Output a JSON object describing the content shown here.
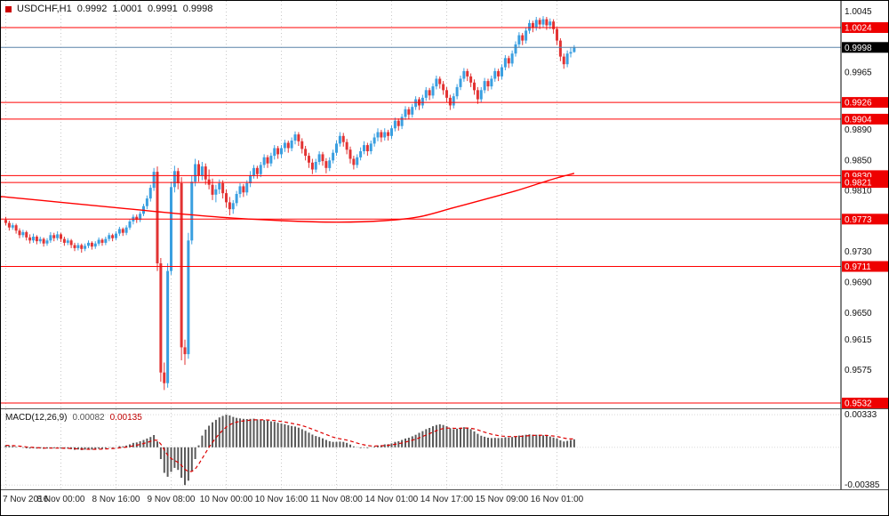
{
  "header": {
    "symbol_period": "USDCHF,H1",
    "open": "0.9992",
    "high": "1.0001",
    "low": "0.9991",
    "close": "0.9998"
  },
  "macd_header": {
    "label": "MACD(12,26,9)",
    "main_value": "0.00082",
    "signal_value": "0.00135"
  },
  "colors": {
    "bull": "#3a9fe0",
    "bear": "#e23333",
    "line_red": "#ff0000",
    "price_line": "#5b84a8",
    "badge_red": "#ee0000",
    "badge_black": "#000000",
    "grid": "#c8c8c8",
    "ma_line": "#ff0000",
    "macd_bar": "#5a5a5a",
    "macd_signal": "#dd0000",
    "axis_text": "#111111"
  },
  "chart_data": {
    "type": "candlestick",
    "title": "USDCHF,H1",
    "price_axis": {
      "min": 0.9532,
      "max": 1.0045,
      "plain_labels": [
        "1.0045",
        "0.9965",
        "0.9890",
        "0.9850",
        "0.9810",
        "0.9730",
        "0.9690",
        "0.9650",
        "0.9615",
        "0.9575"
      ],
      "level_lines": [
        {
          "value": 1.0024,
          "label": "1.0024"
        },
        {
          "value": 0.9926,
          "label": "0.9926"
        },
        {
          "value": 0.9904,
          "label": "0.9904"
        },
        {
          "value": 0.983,
          "label": "0.9830"
        },
        {
          "value": 0.9821,
          "label": "0.9821"
        },
        {
          "value": 0.9773,
          "label": "0.9773"
        },
        {
          "value": 0.9711,
          "label": "0.9711"
        },
        {
          "value": 0.9532,
          "label": "0.9532"
        }
      ],
      "current_price": {
        "value": 0.9998,
        "label": "0.9998"
      }
    },
    "time_axis": {
      "step": 16,
      "labels": [
        "7 Nov 2016",
        "8 Nov 00:00",
        "8 Nov 16:00",
        "9 Nov 08:00",
        "10 Nov 00:00",
        "10 Nov 16:00",
        "11 Nov 08:00",
        "14 Nov 01:00",
        "14 Nov 17:00",
        "15 Nov 09:00",
        "16 Nov 01:00"
      ]
    },
    "candles": [
      [
        0.9772,
        0.9776,
        0.9765,
        0.9768
      ],
      [
        0.9768,
        0.9771,
        0.9758,
        0.9762
      ],
      [
        0.9762,
        0.9768,
        0.9759,
        0.9765
      ],
      [
        0.9765,
        0.9767,
        0.9754,
        0.9758
      ],
      [
        0.9758,
        0.9761,
        0.9748,
        0.9752
      ],
      [
        0.9752,
        0.9759,
        0.9749,
        0.9756
      ],
      [
        0.9756,
        0.9758,
        0.9745,
        0.9749
      ],
      [
        0.9749,
        0.9753,
        0.9741,
        0.9745
      ],
      [
        0.9745,
        0.9754,
        0.9742,
        0.975
      ],
      [
        0.975,
        0.9752,
        0.974,
        0.9744
      ],
      [
        0.9744,
        0.975,
        0.9741,
        0.9747
      ],
      [
        0.9747,
        0.9749,
        0.9737,
        0.9741
      ],
      [
        0.9741,
        0.9748,
        0.9738,
        0.9745
      ],
      [
        0.9745,
        0.9756,
        0.9742,
        0.9752
      ],
      [
        0.9752,
        0.9755,
        0.9744,
        0.9748
      ],
      [
        0.9748,
        0.9757,
        0.9745,
        0.9753
      ],
      [
        0.9753,
        0.9755,
        0.9743,
        0.9747
      ],
      [
        0.9747,
        0.975,
        0.9738,
        0.9742
      ],
      [
        0.9742,
        0.9748,
        0.9739,
        0.9745
      ],
      [
        0.9745,
        0.9747,
        0.9735,
        0.9739
      ],
      [
        0.9739,
        0.9742,
        0.9731,
        0.9735
      ],
      [
        0.9735,
        0.9742,
        0.9732,
        0.9739
      ],
      [
        0.9739,
        0.9741,
        0.9729,
        0.9734
      ],
      [
        0.9734,
        0.9741,
        0.9731,
        0.9738
      ],
      [
        0.9738,
        0.9745,
        0.9735,
        0.9742
      ],
      [
        0.9742,
        0.9744,
        0.9733,
        0.9737
      ],
      [
        0.9737,
        0.9744,
        0.9734,
        0.9741
      ],
      [
        0.9741,
        0.9749,
        0.9738,
        0.9746
      ],
      [
        0.9746,
        0.9748,
        0.9738,
        0.9742
      ],
      [
        0.9742,
        0.975,
        0.9739,
        0.9747
      ],
      [
        0.9747,
        0.9755,
        0.9744,
        0.9752
      ],
      [
        0.9752,
        0.9754,
        0.9744,
        0.9748
      ],
      [
        0.9748,
        0.9757,
        0.9745,
        0.9754
      ],
      [
        0.9754,
        0.9763,
        0.9751,
        0.976
      ],
      [
        0.976,
        0.9762,
        0.9751,
        0.9755
      ],
      [
        0.9755,
        0.9765,
        0.9752,
        0.9762
      ],
      [
        0.9762,
        0.9773,
        0.9759,
        0.977
      ],
      [
        0.977,
        0.9779,
        0.9766,
        0.9776
      ],
      [
        0.9776,
        0.9779,
        0.9768,
        0.9772
      ],
      [
        0.9772,
        0.9783,
        0.9769,
        0.978
      ],
      [
        0.978,
        0.9793,
        0.9777,
        0.979
      ],
      [
        0.979,
        0.9804,
        0.9786,
        0.98
      ],
      [
        0.98,
        0.9818,
        0.9796,
        0.9814
      ],
      [
        0.9814,
        0.984,
        0.981,
        0.9835
      ],
      [
        0.9835,
        0.9842,
        0.9705,
        0.9715
      ],
      [
        0.9715,
        0.9722,
        0.956,
        0.9572
      ],
      [
        0.9572,
        0.9585,
        0.9549,
        0.9558
      ],
      [
        0.9558,
        0.9715,
        0.9552,
        0.9705
      ],
      [
        0.9705,
        0.9822,
        0.97,
        0.9815
      ],
      [
        0.9815,
        0.9843,
        0.9808,
        0.9836
      ],
      [
        0.9836,
        0.984,
        0.9812,
        0.982
      ],
      [
        0.982,
        0.9828,
        0.9588,
        0.9605
      ],
      [
        0.9605,
        0.9615,
        0.9582,
        0.9596
      ],
      [
        0.9596,
        0.9755,
        0.959,
        0.9745
      ],
      [
        0.9745,
        0.983,
        0.974,
        0.9822
      ],
      [
        0.9822,
        0.9852,
        0.9816,
        0.9845
      ],
      [
        0.9845,
        0.985,
        0.9822,
        0.983
      ],
      [
        0.983,
        0.9848,
        0.9824,
        0.9842
      ],
      [
        0.9842,
        0.9846,
        0.9818,
        0.9825
      ],
      [
        0.9825,
        0.9838,
        0.9812,
        0.9818
      ],
      [
        0.9818,
        0.9826,
        0.9798,
        0.9805
      ],
      [
        0.9805,
        0.9818,
        0.9795,
        0.9812
      ],
      [
        0.9812,
        0.9825,
        0.9806,
        0.982
      ],
      [
        0.982,
        0.9824,
        0.98,
        0.9807
      ],
      [
        0.9807,
        0.9812,
        0.9788,
        0.9795
      ],
      [
        0.9795,
        0.9802,
        0.9778,
        0.9786
      ],
      [
        0.9786,
        0.9798,
        0.978,
        0.9794
      ],
      [
        0.9794,
        0.981,
        0.979,
        0.9806
      ],
      [
        0.9806,
        0.982,
        0.9801,
        0.9816
      ],
      [
        0.9816,
        0.9819,
        0.9802,
        0.9808
      ],
      [
        0.9808,
        0.9824,
        0.9804,
        0.982
      ],
      [
        0.982,
        0.9836,
        0.9815,
        0.983
      ],
      [
        0.983,
        0.9844,
        0.9826,
        0.984
      ],
      [
        0.984,
        0.9843,
        0.9826,
        0.9832
      ],
      [
        0.9832,
        0.9848,
        0.9828,
        0.9844
      ],
      [
        0.9844,
        0.9858,
        0.984,
        0.9854
      ],
      [
        0.9854,
        0.9857,
        0.984,
        0.9846
      ],
      [
        0.9846,
        0.986,
        0.9842,
        0.9856
      ],
      [
        0.9856,
        0.987,
        0.9851,
        0.9866
      ],
      [
        0.9866,
        0.9869,
        0.9852,
        0.9858
      ],
      [
        0.9858,
        0.987,
        0.9853,
        0.9866
      ],
      [
        0.9866,
        0.9877,
        0.9861,
        0.9873
      ],
      [
        0.9873,
        0.9876,
        0.986,
        0.9866
      ],
      [
        0.9866,
        0.988,
        0.9862,
        0.9876
      ],
      [
        0.9876,
        0.9888,
        0.9871,
        0.9884
      ],
      [
        0.9884,
        0.9887,
        0.9869,
        0.9875
      ],
      [
        0.9875,
        0.9879,
        0.9859,
        0.9865
      ],
      [
        0.9865,
        0.9869,
        0.985,
        0.9856
      ],
      [
        0.9856,
        0.986,
        0.984,
        0.9847
      ],
      [
        0.9847,
        0.9852,
        0.9832,
        0.9838
      ],
      [
        0.9838,
        0.9852,
        0.9834,
        0.9848
      ],
      [
        0.9848,
        0.9862,
        0.9844,
        0.9858
      ],
      [
        0.9858,
        0.9861,
        0.9843,
        0.9849
      ],
      [
        0.9849,
        0.9853,
        0.9833,
        0.984
      ],
      [
        0.984,
        0.9854,
        0.9836,
        0.985
      ],
      [
        0.985,
        0.9864,
        0.9846,
        0.986
      ],
      [
        0.986,
        0.9876,
        0.9856,
        0.9872
      ],
      [
        0.9872,
        0.9887,
        0.9868,
        0.9882
      ],
      [
        0.9882,
        0.9886,
        0.9868,
        0.9874
      ],
      [
        0.9874,
        0.9878,
        0.9858,
        0.9864
      ],
      [
        0.9864,
        0.9868,
        0.9846,
        0.9852
      ],
      [
        0.9852,
        0.9856,
        0.9838,
        0.9844
      ],
      [
        0.9844,
        0.9858,
        0.984,
        0.9854
      ],
      [
        0.9854,
        0.9867,
        0.985,
        0.9862
      ],
      [
        0.9862,
        0.9875,
        0.9858,
        0.987
      ],
      [
        0.987,
        0.9873,
        0.9856,
        0.9862
      ],
      [
        0.9862,
        0.9876,
        0.9858,
        0.9872
      ],
      [
        0.9872,
        0.9885,
        0.9868,
        0.988
      ],
      [
        0.988,
        0.9892,
        0.9875,
        0.9887
      ],
      [
        0.9887,
        0.989,
        0.9874,
        0.988
      ],
      [
        0.988,
        0.9892,
        0.9876,
        0.9887
      ],
      [
        0.9887,
        0.989,
        0.9876,
        0.9882
      ],
      [
        0.9882,
        0.9896,
        0.9878,
        0.9892
      ],
      [
        0.9892,
        0.9906,
        0.9888,
        0.9902
      ],
      [
        0.9902,
        0.9905,
        0.9889,
        0.9895
      ],
      [
        0.9895,
        0.9911,
        0.9891,
        0.9907
      ],
      [
        0.9907,
        0.9921,
        0.9903,
        0.9917
      ],
      [
        0.9917,
        0.992,
        0.9904,
        0.991
      ],
      [
        0.991,
        0.9924,
        0.9906,
        0.992
      ],
      [
        0.992,
        0.9934,
        0.9916,
        0.993
      ],
      [
        0.993,
        0.9933,
        0.9916,
        0.9922
      ],
      [
        0.9922,
        0.9936,
        0.9918,
        0.9932
      ],
      [
        0.9932,
        0.9946,
        0.9928,
        0.9942
      ],
      [
        0.9942,
        0.9945,
        0.9929,
        0.9935
      ],
      [
        0.9935,
        0.9951,
        0.9931,
        0.9947
      ],
      [
        0.9947,
        0.9961,
        0.9943,
        0.9957
      ],
      [
        0.9957,
        0.996,
        0.9944,
        0.995
      ],
      [
        0.995,
        0.9954,
        0.9936,
        0.9942
      ],
      [
        0.9942,
        0.9946,
        0.9926,
        0.9932
      ],
      [
        0.9932,
        0.9936,
        0.9916,
        0.9922
      ],
      [
        0.9922,
        0.9938,
        0.9918,
        0.9934
      ],
      [
        0.9934,
        0.995,
        0.993,
        0.9946
      ],
      [
        0.9946,
        0.9961,
        0.9942,
        0.9957
      ],
      [
        0.9957,
        0.9971,
        0.9953,
        0.9967
      ],
      [
        0.9967,
        0.997,
        0.9954,
        0.996
      ],
      [
        0.996,
        0.9964,
        0.9946,
        0.9952
      ],
      [
        0.9952,
        0.9956,
        0.9936,
        0.9942
      ],
      [
        0.9942,
        0.9946,
        0.9924,
        0.993
      ],
      [
        0.993,
        0.9946,
        0.9926,
        0.9942
      ],
      [
        0.9942,
        0.9958,
        0.9938,
        0.9954
      ],
      [
        0.9954,
        0.9957,
        0.9941,
        0.9947
      ],
      [
        0.9947,
        0.9961,
        0.9943,
        0.9957
      ],
      [
        0.9957,
        0.9971,
        0.9953,
        0.9967
      ],
      [
        0.9967,
        0.997,
        0.9954,
        0.996
      ],
      [
        0.996,
        0.9976,
        0.9956,
        0.9972
      ],
      [
        0.9972,
        0.9988,
        0.9968,
        0.9984
      ],
      [
        0.9984,
        0.9987,
        0.9971,
        0.9977
      ],
      [
        0.9977,
        0.9994,
        0.9973,
        0.999
      ],
      [
        0.999,
        1.0006,
        0.9986,
        1.0002
      ],
      [
        1.0002,
        1.0018,
        0.9998,
        1.0014
      ],
      [
        1.0014,
        1.0017,
        1.0001,
        1.0007
      ],
      [
        1.0007,
        1.0024,
        1.0003,
        1.002
      ],
      [
        1.002,
        1.0034,
        1.0016,
        1.003
      ],
      [
        1.003,
        1.0033,
        1.0018,
        1.0024
      ],
      [
        1.0024,
        1.0038,
        1.002,
        1.0034
      ],
      [
        1.0034,
        1.0037,
        1.0022,
        1.0028
      ],
      [
        1.0028,
        1.0039,
        1.0024,
        1.0035
      ],
      [
        1.0035,
        1.0038,
        1.0021,
        1.0027
      ],
      [
        1.0027,
        1.0036,
        1.0022,
        1.0032
      ],
      [
        1.0032,
        1.0035,
        1.0016,
        1.0022
      ],
      [
        1.0022,
        1.0025,
        1.0001,
        1.0007
      ],
      [
        1.0007,
        1.001,
        0.998,
        0.9986
      ],
      [
        0.9986,
        0.999,
        0.997,
        0.9976
      ],
      [
        0.9976,
        0.9994,
        0.9972,
        0.999
      ],
      [
        0.999,
        0.9998,
        0.9985,
        0.9992
      ],
      [
        0.9992,
        1.0001,
        0.9991,
        0.9998
      ]
    ],
    "moving_average": [
      [
        0,
        0.9802
      ],
      [
        16,
        0.9795
      ],
      [
        32,
        0.9788
      ],
      [
        48,
        0.9781
      ],
      [
        64,
        0.9775
      ],
      [
        80,
        0.9771
      ],
      [
        96,
        0.9769
      ],
      [
        110,
        0.9771
      ],
      [
        120,
        0.9776
      ],
      [
        130,
        0.9788
      ],
      [
        140,
        0.98
      ],
      [
        148,
        0.981
      ],
      [
        155,
        0.982
      ],
      [
        160,
        0.9827
      ],
      [
        165,
        0.9833
      ]
    ],
    "macd": {
      "params": "12,26,9",
      "signal_period": 9,
      "scale_max": 0.00333,
      "scale_min": -0.00385,
      "scale_max_label": "0.00333",
      "scale_min_label": "-0.00385",
      "current_main": 0.00082,
      "current_signal": 0.00135,
      "values": [
        0.0002,
        0.00015,
        0.0001,
        5e-05,
        0,
        -5e-05,
        -0.0001,
        -0.00012,
        -0.0001,
        -0.00013,
        -0.00012,
        -0.00015,
        -0.00012,
        -8e-05,
        -0.0001,
        -6e-05,
        -0.0001,
        -0.00015,
        -0.00013,
        -0.00018,
        -0.00025,
        -0.00022,
        -0.00028,
        -0.00024,
        -0.0002,
        -0.00024,
        -0.0002,
        -0.00014,
        -0.00016,
        -0.0001,
        -4e-05,
        -6e-05,
        2e-05,
        0.00012,
        0.0001,
        0.00018,
        0.0003,
        0.00045,
        0.0005,
        0.00062,
        0.00075,
        0.0009,
        0.00105,
        0.00125,
        0.0006,
        -0.0012,
        -0.0026,
        -0.003,
        -0.0025,
        -0.0021,
        -0.0023,
        -0.0031,
        -0.00385,
        -0.0034,
        -0.0024,
        -0.0012,
        0.0002,
        0.0012,
        0.0018,
        0.0022,
        0.00255,
        0.0028,
        0.00305,
        0.0032,
        0.00333,
        0.00325,
        0.0031,
        0.003,
        0.00295,
        0.0029,
        0.00288,
        0.0029,
        0.00292,
        0.00285,
        0.0028,
        0.00278,
        0.00272,
        0.00265,
        0.0026,
        0.0025,
        0.00242,
        0.00235,
        0.00225,
        0.00218,
        0.00212,
        0.002,
        0.00185,
        0.00168,
        0.0015,
        0.0013,
        0.00115,
        0.00105,
        0.00092,
        0.00075,
        0.00062,
        0.00055,
        0.00055,
        0.00058,
        0.00055,
        0.00045,
        0.00028,
        0.0001,
        -2e-05,
        -8e-05,
        -5e-05,
        -8e-05,
        -2e-05,
        8e-05,
        0.00018,
        0.00022,
        0.0003,
        0.00032,
        0.0004,
        0.00055,
        0.00062,
        0.00075,
        0.0009,
        0.00098,
        0.00112,
        0.00128,
        0.00148,
        0.00165,
        0.00185,
        0.00198,
        0.00215,
        0.00228,
        0.00235,
        0.00228,
        0.00215,
        0.00195,
        0.00185,
        0.0019,
        0.002,
        0.00205,
        0.00198,
        0.00185,
        0.00162,
        0.00138,
        0.00118,
        0.00108,
        0.00098,
        0.00094,
        0.00096,
        0.00094,
        0.00095,
        0.00102,
        0.001,
        0.00105,
        0.00112,
        0.0012,
        0.00122,
        0.00128,
        0.00132,
        0.00128,
        0.00128,
        0.00124,
        0.00122,
        0.00116,
        0.0011,
        0.001,
        0.0009,
        0.00072,
        0.0006,
        0.00065,
        0.00075,
        0.00082
      ]
    }
  }
}
